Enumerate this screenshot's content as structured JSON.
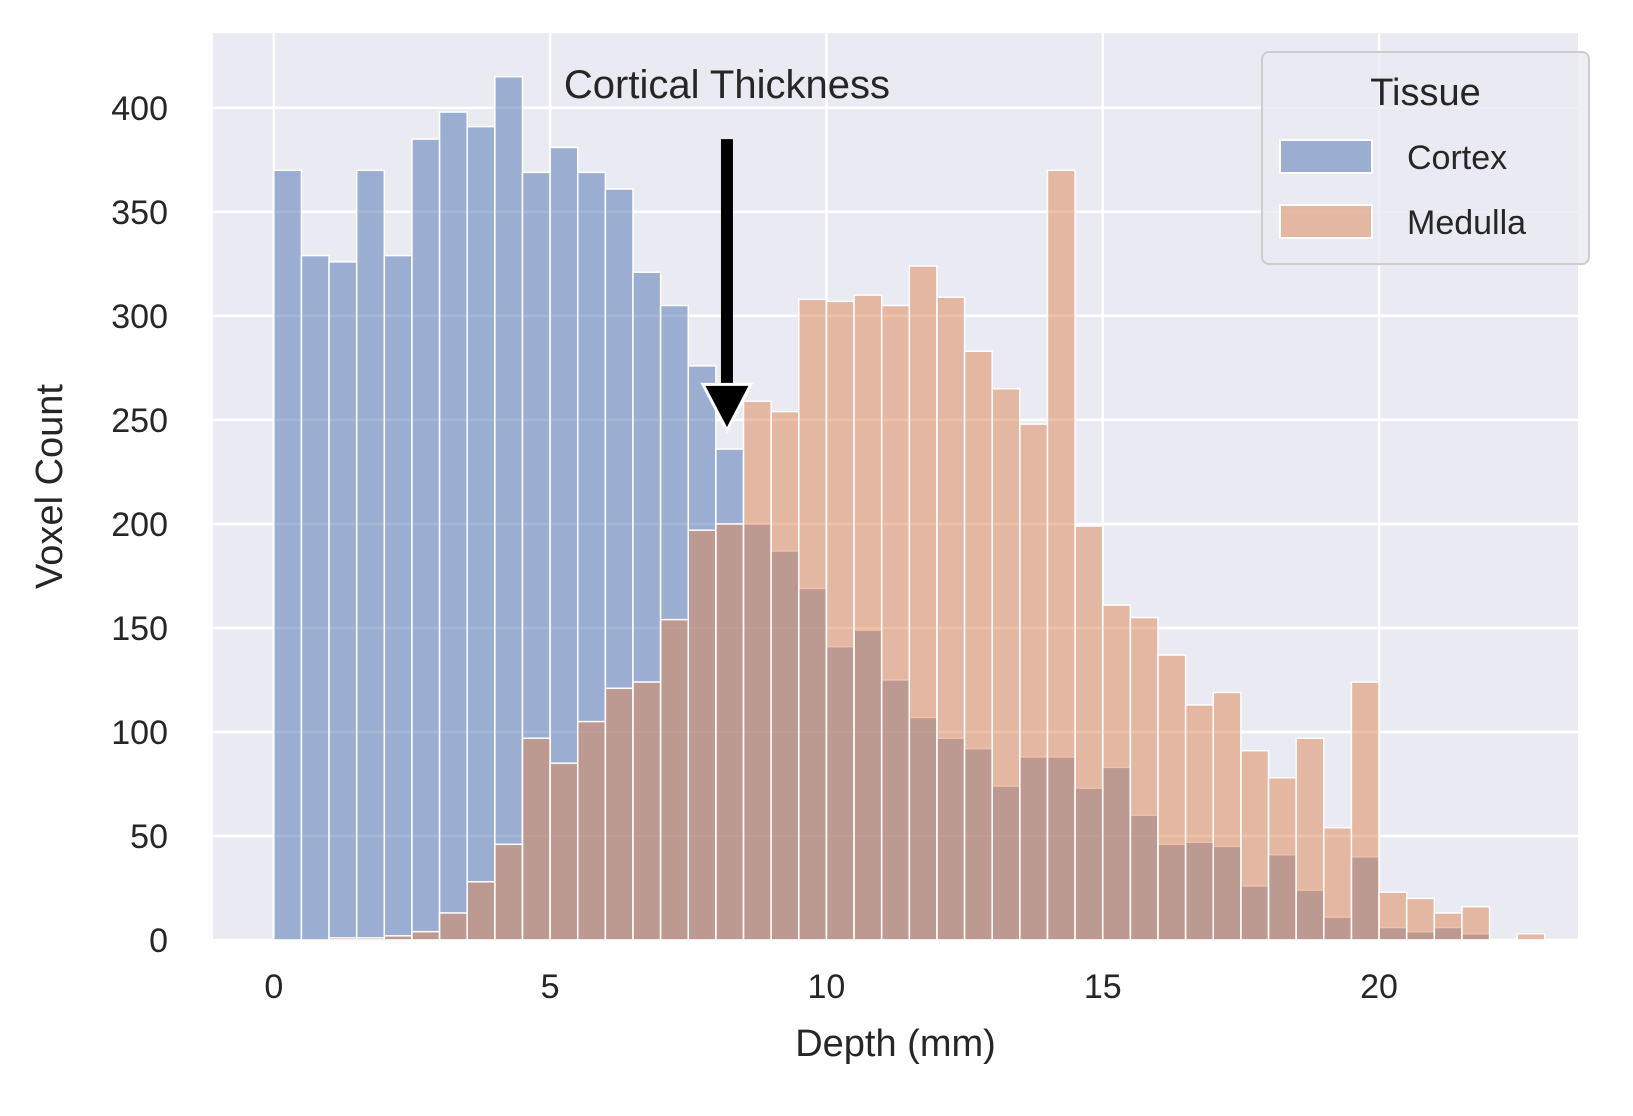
{
  "chart_data": {
    "type": "bar",
    "subtype": "overlapping-histogram",
    "title": "",
    "xlabel": "Depth (mm)",
    "ylabel": "Voxel Count",
    "xlim": [
      -1.1,
      23.6
    ],
    "ylim": [
      0,
      436
    ],
    "x_ticks": [
      0,
      5,
      10,
      15,
      20
    ],
    "y_ticks": [
      0,
      50,
      100,
      150,
      200,
      250,
      300,
      350,
      400
    ],
    "grid": true,
    "bin_start": 0,
    "bin_width": 0.5,
    "legend": {
      "title": "Tissue",
      "position": "top-right"
    },
    "series": [
      {
        "name": "Cortex",
        "color": "#4c72b0",
        "values": [
          370,
          329,
          326,
          370,
          329,
          385,
          398,
          391,
          415,
          369,
          381,
          369,
          361,
          321,
          305,
          276,
          236,
          200,
          187,
          169,
          141,
          149,
          125,
          107,
          97,
          92,
          74,
          88,
          88,
          73,
          83,
          60,
          46,
          47,
          45,
          26,
          41,
          24,
          11,
          40,
          6,
          4,
          6,
          3,
          0,
          0
        ]
      },
      {
        "name": "Medulla",
        "color": "#dd8452",
        "values": [
          0,
          0,
          1,
          1,
          2,
          4,
          13,
          28,
          46,
          97,
          85,
          105,
          121,
          124,
          154,
          197,
          200,
          259,
          254,
          308,
          307,
          310,
          305,
          324,
          309,
          283,
          265,
          248,
          370,
          199,
          161,
          155,
          137,
          113,
          119,
          91,
          78,
          97,
          54,
          124,
          23,
          20,
          13,
          16,
          0,
          3
        ]
      }
    ],
    "annotation": {
      "text": "Cortical Thickness",
      "arrow_x": 8.2,
      "arrow_tip_y": 245,
      "arrow_tail_y": 385
    }
  }
}
